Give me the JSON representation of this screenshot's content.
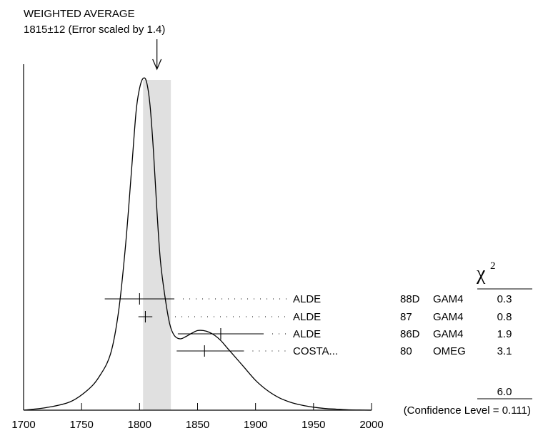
{
  "chart_data": {
    "type": "ideogram",
    "title": "WEIGHTED AVERAGE",
    "subtitle": "1815±12 (Error scaled by 1.4)",
    "average": {
      "value": 1815,
      "error": 12,
      "band": [
        1803,
        1827
      ]
    },
    "xlim": [
      1700,
      2000
    ],
    "x_ticks": [
      1700,
      1750,
      1800,
      1850,
      1900,
      1950,
      2000
    ],
    "curve": {
      "x": [
        1700,
        1720,
        1740,
        1755,
        1765,
        1775,
        1782,
        1788,
        1793,
        1797,
        1800,
        1803,
        1806,
        1809,
        1812,
        1815,
        1818,
        1822,
        1826,
        1830,
        1835,
        1840,
        1845,
        1850,
        1855,
        1860,
        1865,
        1870,
        1875,
        1880,
        1890,
        1900,
        1910,
        1920,
        1930,
        1940,
        1950,
        1960,
        1970,
        1980,
        1990,
        2000
      ],
      "y": [
        0.0,
        0.008,
        0.025,
        0.06,
        0.1,
        0.17,
        0.3,
        0.5,
        0.72,
        0.9,
        0.97,
        1.0,
        0.99,
        0.92,
        0.78,
        0.6,
        0.45,
        0.34,
        0.26,
        0.225,
        0.215,
        0.222,
        0.232,
        0.24,
        0.24,
        0.235,
        0.225,
        0.21,
        0.19,
        0.17,
        0.13,
        0.09,
        0.06,
        0.038,
        0.024,
        0.015,
        0.009,
        0.005,
        0.003,
        0.001,
        0.0005,
        0.0
      ]
    },
    "measurements": [
      {
        "value": 1800,
        "err_low": 30,
        "err_high": 30,
        "label": "ALDE",
        "year": "88D",
        "tech": "GAM4",
        "chi2": "0.3"
      },
      {
        "value": 1805,
        "err_low": 6,
        "err_high": 6,
        "label": "ALDE",
        "year": "87",
        "tech": "GAM4",
        "chi2": "0.8"
      },
      {
        "value": 1870,
        "err_low": 37,
        "err_high": 37,
        "label": "ALDE",
        "year": "86D",
        "tech": "GAM4",
        "chi2": "1.9"
      },
      {
        "value": 1856,
        "err_low": 24,
        "err_high": 34,
        "label": "COSTA...",
        "year": "80",
        "tech": "OMEG",
        "chi2": "3.1"
      }
    ],
    "chi2_header": "χ",
    "chi2_header_sup": "2",
    "chi2_total": "6.0",
    "confidence_level": "(Confidence Level = 0.111)"
  }
}
